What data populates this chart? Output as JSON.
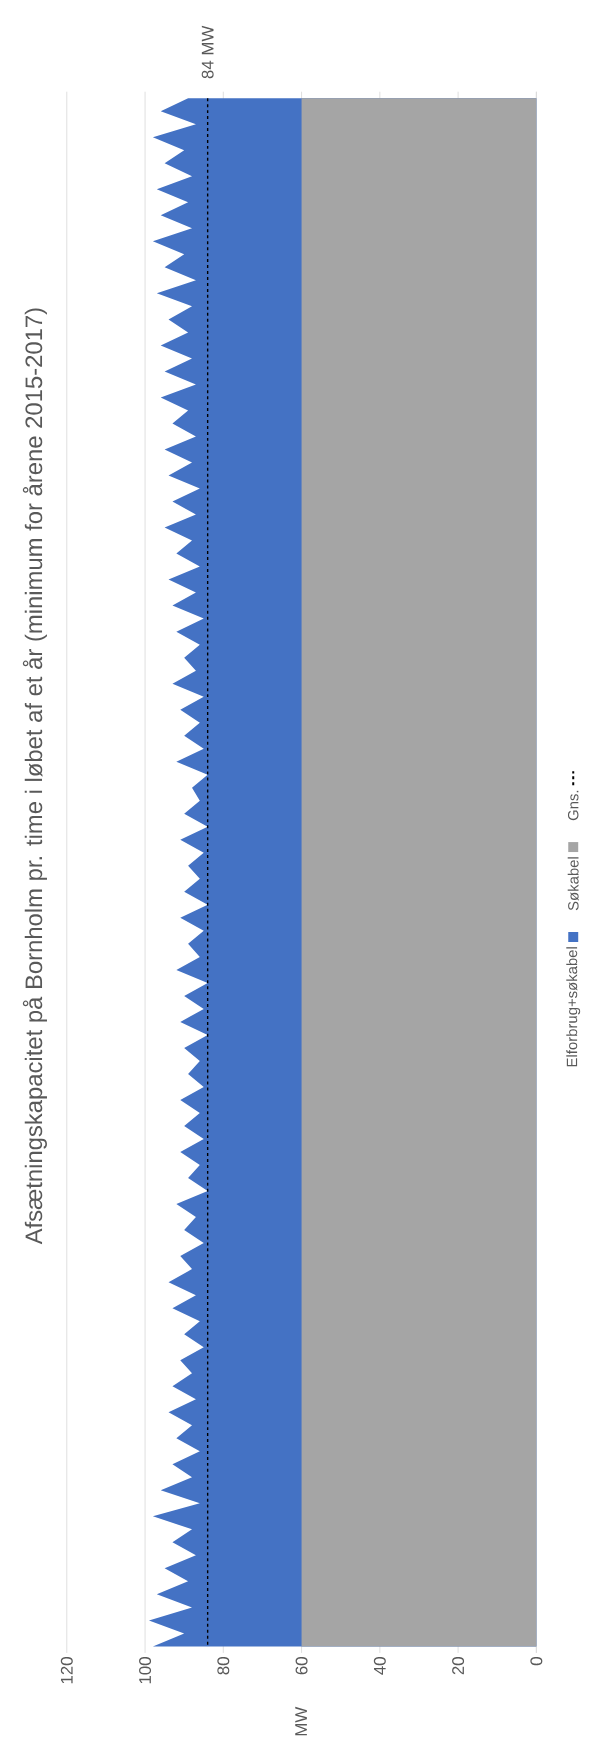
{
  "chart_data": {
    "type": "area",
    "orientation": "horizontal",
    "title": "Afsætningskapacitet på Bornholm pr. time i løbet af et år (minimum for årene 2015-2017)",
    "ylabel": "MW",
    "categories": [
      null,
      null,
      null,
      null,
      null,
      null,
      null,
      null,
      null,
      null,
      null,
      null,
      null,
      null,
      null,
      null,
      null,
      null,
      null,
      null,
      null,
      null,
      null,
      null,
      null,
      null,
      null,
      null,
      null,
      null,
      null,
      null,
      null,
      null,
      null,
      null,
      null,
      null,
      null,
      null,
      null,
      null,
      null,
      null,
      null,
      null,
      null,
      null,
      null,
      null,
      null,
      null,
      null,
      null,
      null,
      null,
      null,
      null,
      null,
      null,
      null,
      null,
      null,
      null,
      null,
      null,
      null,
      null,
      null,
      null,
      null,
      null,
      null,
      null,
      null,
      null,
      null,
      null,
      null,
      null,
      null,
      null,
      null,
      null,
      null,
      null,
      null,
      null,
      null,
      null,
      null,
      null,
      null,
      null,
      null,
      null,
      null,
      null,
      null,
      null,
      null,
      null,
      null,
      null,
      null,
      null,
      null,
      null,
      null,
      null,
      null,
      null,
      null,
      null,
      null,
      null,
      null,
      null,
      null,
      null
    ],
    "series": [
      {
        "name": "Elforbrug+søkabel",
        "color": "#4472c4",
        "values": [
          89,
          96,
          87,
          98,
          90,
          95,
          88,
          97,
          89,
          96,
          88,
          98,
          90,
          95,
          87,
          97,
          88,
          94,
          89,
          96,
          88,
          95,
          87,
          96,
          89,
          93,
          87,
          95,
          88,
          94,
          86,
          93,
          87,
          95,
          88,
          92,
          86,
          94,
          87,
          93,
          85,
          92,
          86,
          90,
          87,
          93,
          85,
          91,
          86,
          90,
          85,
          92,
          84,
          88,
          86,
          90,
          84,
          91,
          85,
          89,
          86,
          90,
          84,
          91,
          85,
          89,
          86,
          92,
          84,
          90,
          85,
          91,
          84,
          90,
          86,
          89,
          85,
          91,
          86,
          90,
          85,
          91,
          86,
          89,
          84,
          92,
          87,
          90,
          85,
          91,
          88,
          94,
          87,
          93,
          86,
          90,
          85,
          91,
          88,
          93,
          87,
          94,
          88,
          92,
          86,
          93,
          88,
          96,
          86,
          98,
          88,
          93,
          87,
          95,
          89,
          97,
          88,
          99,
          90,
          98
        ]
      },
      {
        "name": "Søkabel",
        "color": "#a5a5a5",
        "values": [
          60,
          60,
          60,
          60,
          60,
          60,
          60,
          60,
          60,
          60,
          60,
          60,
          60,
          60,
          60,
          60,
          60,
          60,
          60,
          60,
          60,
          60,
          60,
          60,
          60,
          60,
          60,
          60,
          60,
          60,
          60,
          60,
          60,
          60,
          60,
          60,
          60,
          60,
          60,
          60,
          60,
          60,
          60,
          60,
          60,
          60,
          60,
          60,
          60,
          60,
          60,
          60,
          60,
          60,
          60,
          60,
          60,
          60,
          60,
          60,
          60,
          60,
          60,
          60,
          60,
          60,
          60,
          60,
          60,
          60,
          60,
          60,
          60,
          60,
          60,
          60,
          60,
          60,
          60,
          60,
          60,
          60,
          60,
          60,
          60,
          60,
          60,
          60,
          60,
          60,
          60,
          60,
          60,
          60,
          60,
          60,
          60,
          60,
          60,
          60,
          60,
          60,
          60,
          60,
          60,
          60,
          60,
          60,
          60,
          60,
          60,
          60,
          60,
          60,
          60,
          60,
          60,
          60,
          60,
          60
        ]
      },
      {
        "name": "Gns.",
        "type": "line",
        "color": "#000000",
        "line_style": "dashed",
        "values": [
          84,
          84,
          84,
          84,
          84,
          84,
          84,
          84,
          84,
          84,
          84,
          84,
          84,
          84,
          84,
          84,
          84,
          84,
          84,
          84,
          84,
          84,
          84,
          84,
          84,
          84,
          84,
          84,
          84,
          84,
          84,
          84,
          84,
          84,
          84,
          84,
          84,
          84,
          84,
          84,
          84,
          84,
          84,
          84,
          84,
          84,
          84,
          84,
          84,
          84,
          84,
          84,
          84,
          84,
          84,
          84,
          84,
          84,
          84,
          84,
          84,
          84,
          84,
          84,
          84,
          84,
          84,
          84,
          84,
          84,
          84,
          84,
          84,
          84,
          84,
          84,
          84,
          84,
          84,
          84,
          84,
          84,
          84,
          84,
          84,
          84,
          84,
          84,
          84,
          84,
          84,
          84,
          84,
          84,
          84,
          84,
          84,
          84,
          84,
          84,
          84,
          84,
          84,
          84,
          84,
          84,
          84,
          84,
          84,
          84,
          84,
          84,
          84,
          84,
          84,
          84,
          84,
          84,
          84,
          84
        ],
        "value_labels": [
          "84 MW",
          null,
          null,
          null,
          null,
          null,
          null,
          null,
          null,
          null,
          null,
          null,
          null,
          null,
          null,
          null,
          null,
          null,
          null,
          null,
          null,
          null,
          null,
          null,
          null,
          null,
          null,
          null,
          null,
          null,
          null,
          null,
          null,
          null,
          null,
          null,
          null,
          null,
          null,
          null,
          null,
          null,
          null,
          null,
          null,
          null,
          null,
          null,
          null,
          null,
          null,
          null,
          null,
          null,
          null,
          null,
          null,
          null,
          null,
          null,
          null,
          null,
          null,
          null,
          null,
          null,
          null,
          null,
          null,
          null,
          null,
          null,
          null,
          null,
          null,
          null,
          null,
          null,
          null,
          null,
          null,
          null,
          null,
          null,
          null,
          null,
          null,
          null,
          null,
          null,
          null,
          null,
          null,
          null,
          null,
          null,
          null,
          null,
          null,
          null,
          null,
          null,
          null,
          null,
          null,
          null,
          null,
          null,
          null,
          null,
          null,
          null,
          null,
          null,
          null,
          null,
          null,
          null,
          null,
          null
        ]
      }
    ],
    "xlim": [
      120,
      0
    ],
    "xticks": [
      0,
      20,
      40,
      60,
      80,
      100,
      120
    ],
    "grid": "x",
    "legend": "right"
  }
}
